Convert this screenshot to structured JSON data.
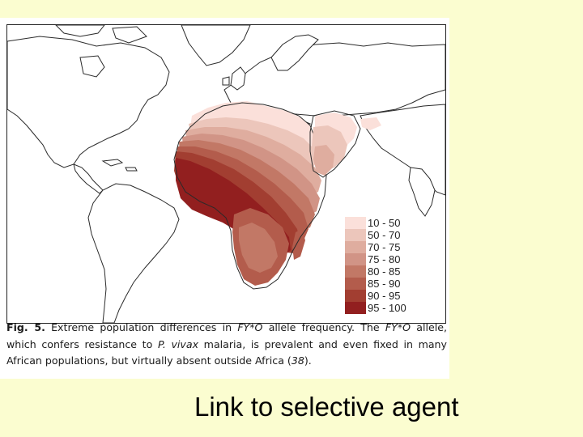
{
  "map": {
    "legend": [
      {
        "label": "10 - 50",
        "color": "#fbe0da"
      },
      {
        "label": "50 - 70",
        "color": "#ecc6bb"
      },
      {
        "label": "70 - 75",
        "color": "#dfad9f"
      },
      {
        "label": "75 - 80",
        "color": "#d19486"
      },
      {
        "label": "80 - 85",
        "color": "#c27866"
      },
      {
        "label": "85 - 90",
        "color": "#b35c4c"
      },
      {
        "label": "90 - 95",
        "color": "#a23e31"
      },
      {
        "label": "95 - 100",
        "color": "#921f1f"
      }
    ],
    "colors": {
      "land_outline": "#2a2a2a",
      "ocean": "#ffffff"
    }
  },
  "caption": {
    "fig_label": "Fig. 5.",
    "part1": " Extreme population differences in ",
    "gene1": "FY*O",
    "part2": " allele frequency. The ",
    "gene2": "FY*O",
    "part3": " allele, which confers resistance to ",
    "species": "P. vivax",
    "part4": " malaria, is prevalent and even fixed in many African populations, but virtually absent outside Africa (",
    "ref": "38",
    "part5": ")."
  },
  "slide": {
    "subtitle": "Link to selective agent",
    "background": "#fbfdd0"
  }
}
